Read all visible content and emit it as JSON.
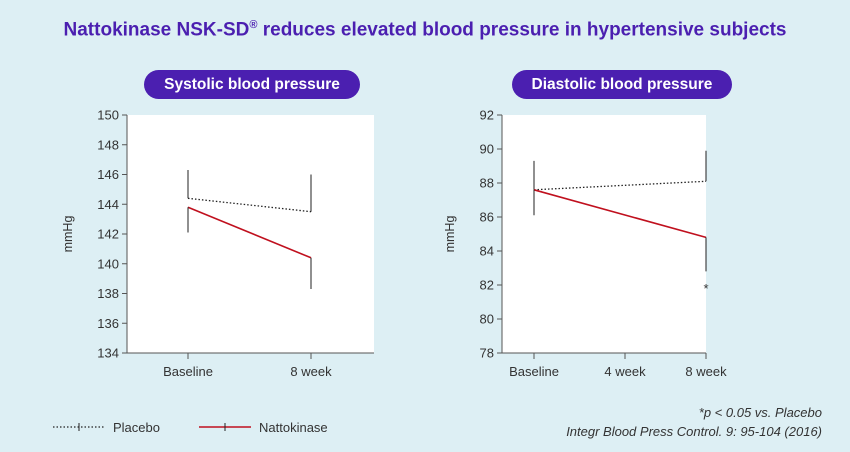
{
  "title": "Nattokinase NSK-SD",
  "title_mark": "®",
  "title_rest": " reduces elevated blood pressure in hypertensive subjects",
  "legend": {
    "placebo": "Placebo",
    "nattokinase": "Nattokinase"
  },
  "footnote": "*p < 0.05 vs. Placebo",
  "citation": "Integr Blood Press Control. 9: 95-104 (2016)",
  "colors": {
    "accent": "#4b1fb0",
    "nattokinase": "#c0101e",
    "placebo": "#222222",
    "background": "#ddeff4"
  },
  "chart_data": [
    {
      "type": "line",
      "title": "Systolic blood pressure",
      "ylabel": "mmHg",
      "ylim": [
        134,
        150
      ],
      "yticks": [
        134,
        136,
        138,
        140,
        142,
        144,
        146,
        148,
        150
      ],
      "categories": [
        "Baseline",
        "8 week"
      ],
      "series": [
        {
          "name": "Placebo",
          "values": [
            144.4,
            143.5
          ],
          "err_up": [
            1.9,
            2.5
          ],
          "err_down": [
            0,
            0
          ],
          "style": "dotted"
        },
        {
          "name": "Nattokinase",
          "values": [
            143.8,
            140.4
          ],
          "err_up": [
            0,
            0
          ],
          "err_down": [
            1.7,
            2.1
          ],
          "style": "solid"
        }
      ],
      "annotations": []
    },
    {
      "type": "line",
      "title": "Diastolic blood pressure",
      "ylabel": "mmHg",
      "ylim": [
        78,
        92
      ],
      "yticks": [
        78,
        80,
        82,
        84,
        86,
        88,
        90,
        92
      ],
      "categories": [
        "Baseline",
        "4 week",
        "8 week"
      ],
      "series": [
        {
          "name": "Placebo",
          "values": [
            87.6,
            null,
            88.1
          ],
          "err_up": [
            1.7,
            0,
            1.8
          ],
          "err_down": [
            0,
            0,
            0
          ],
          "style": "dotted"
        },
        {
          "name": "Nattokinase",
          "values": [
            87.6,
            null,
            84.8
          ],
          "err_up": [
            0,
            0,
            0
          ],
          "err_down": [
            1.5,
            0,
            2.0
          ],
          "style": "solid"
        }
      ],
      "annotations": [
        {
          "text": "*",
          "category": "8 week",
          "y": 82
        }
      ]
    }
  ]
}
